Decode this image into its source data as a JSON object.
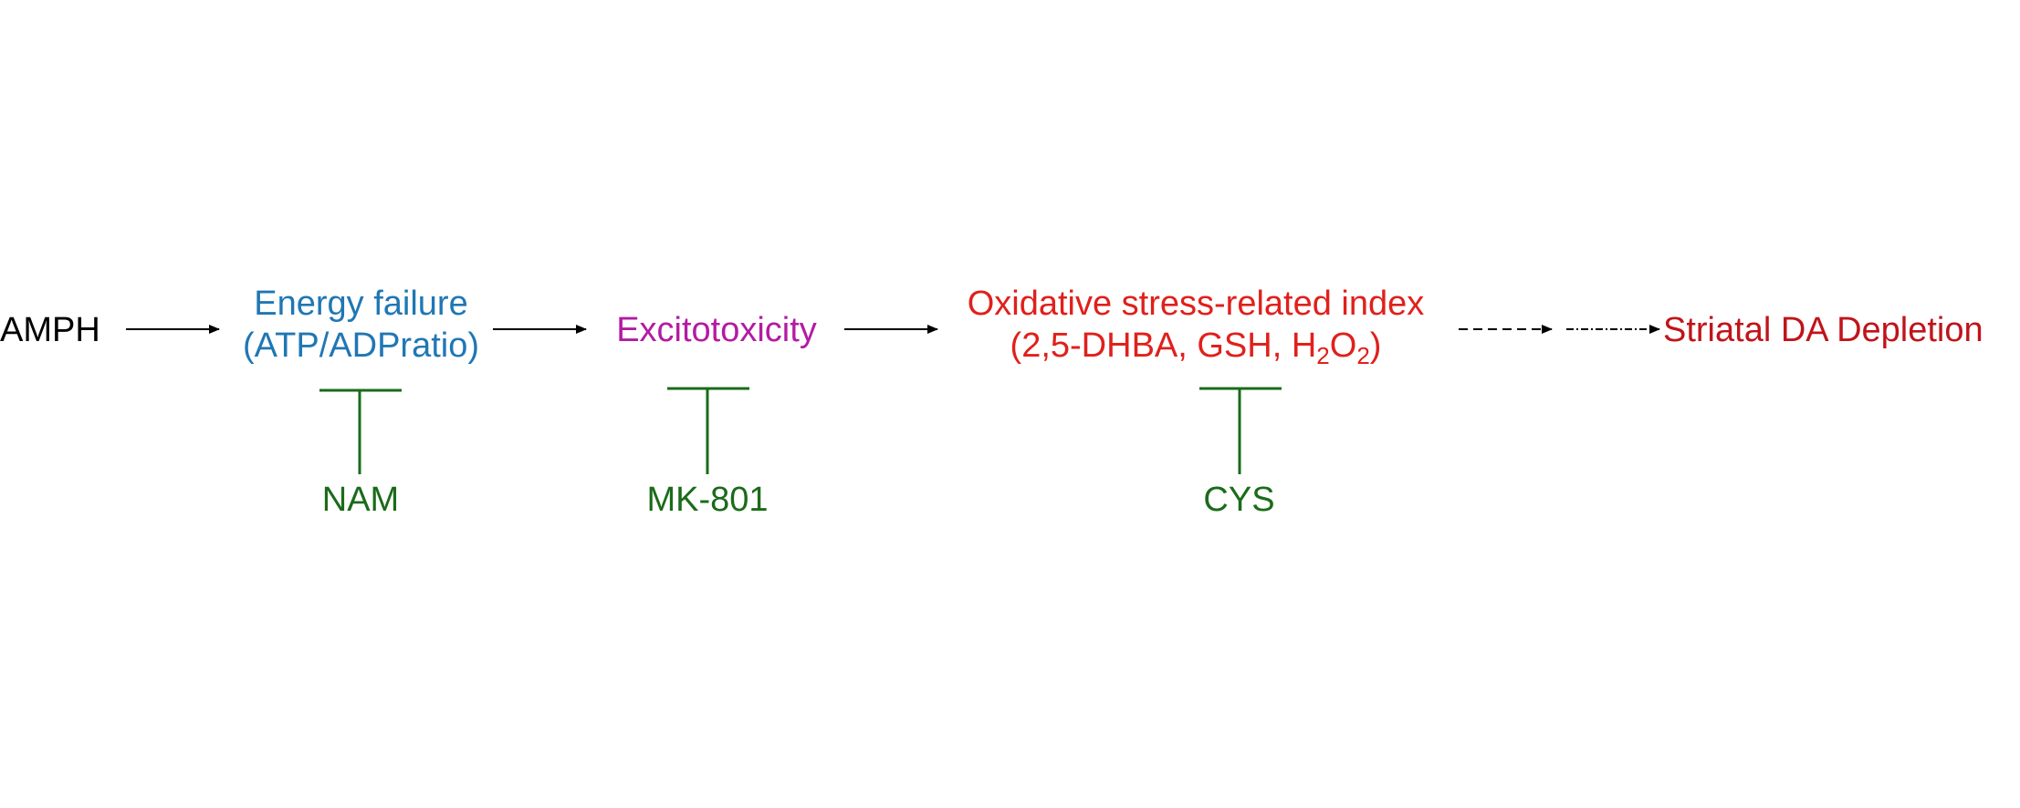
{
  "diagram": {
    "nodes": {
      "amph": {
        "label": "AMPH"
      },
      "energy": {
        "line1": "Energy failure",
        "line2": "(ATP/ADPratio)"
      },
      "excito": {
        "label": "Excitotoxicity"
      },
      "oxid": {
        "line1": "Oxidative stress-related index",
        "line2_prefix": "(2,5-DHBA, GSH, H",
        "line2_sub1": "2",
        "line2_mid": "O",
        "line2_sub2": "2",
        "line2_suffix": ")"
      },
      "striatal": {
        "label": "Striatal DA Depletion"
      }
    },
    "inhibitors": {
      "nam": {
        "label": "NAM"
      },
      "mk801": {
        "label": "MK-801"
      },
      "cys": {
        "label": "CYS"
      }
    },
    "colors": {
      "amph": "#000000",
      "energy": "#1f77b4",
      "excito": "#b31ba3",
      "oxid": "#e0201b",
      "striatal": "#c0141a",
      "inhibitor": "#1a6b1a",
      "arrow": "#000000"
    }
  }
}
